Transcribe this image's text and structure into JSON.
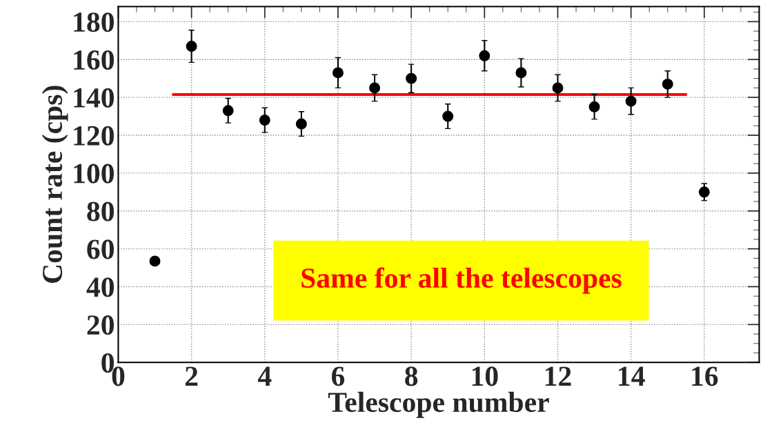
{
  "chart_data": {
    "type": "scatter",
    "xlabel": "Telescope number",
    "ylabel": "Count rate (cps)",
    "x": [
      1,
      2,
      3,
      4,
      5,
      6,
      7,
      8,
      9,
      10,
      11,
      12,
      13,
      14,
      15,
      16
    ],
    "series": [
      {
        "color": "#000000",
        "marker": "circle",
        "values": [
          53.5,
          167,
          133,
          128,
          126,
          153,
          145,
          150,
          130,
          162,
          153,
          145,
          135,
          138,
          147,
          90
        ],
        "errors": [
          null,
          8.5,
          6.5,
          6.5,
          6.5,
          8,
          7,
          7.5,
          6.5,
          8,
          7.5,
          7,
          6.5,
          7,
          7,
          4.5
        ]
      },
      {
        "type": "line",
        "color": "#ff0000",
        "x": [
          1.5,
          15.5
        ],
        "values": [
          141.5,
          141.5
        ]
      }
    ],
    "annotations": [
      "Same for all the telescopes"
    ],
    "xlim": [
      0,
      17.5
    ],
    "xticks": [
      0,
      2,
      4,
      6,
      8,
      10,
      12,
      14,
      16
    ],
    "ylim": [
      0,
      188
    ],
    "yticks": [
      0,
      20,
      40,
      60,
      80,
      100,
      120,
      140,
      160,
      180
    ],
    "grid": true,
    "legend": false
  }
}
